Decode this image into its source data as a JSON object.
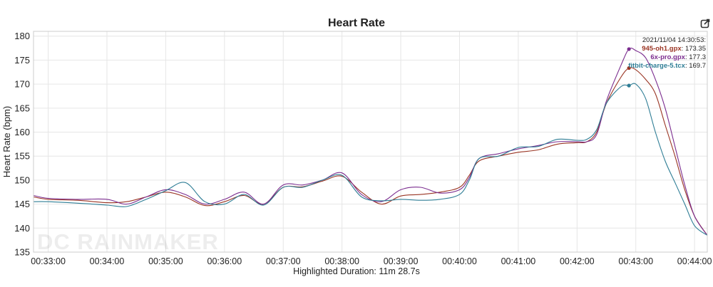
{
  "chart_data": {
    "type": "line",
    "title": "Heart Rate",
    "ylabel": "Heart Rate (bpm)",
    "xlabel": "",
    "ylim": [
      135,
      181
    ],
    "xlim": [
      "00:32:45",
      "00:44:13"
    ],
    "yticks": [
      135,
      140,
      145,
      150,
      155,
      160,
      165,
      170,
      175,
      180
    ],
    "xticks": [
      "00:33:00",
      "00:34:00",
      "00:35:00",
      "00:36:00",
      "00:37:00",
      "00:38:00",
      "00:39:00",
      "00:40:00",
      "00:41:00",
      "00:42:00",
      "00:43:00",
      "00:44:00"
    ],
    "grid": true,
    "series": [
      {
        "name": "945-oh1.gpx",
        "color": "#9a3524",
        "x": [
          "00:32:45",
          "00:33:00",
          "00:33:30",
          "00:34:00",
          "00:34:20",
          "00:34:40",
          "00:35:00",
          "00:35:20",
          "00:35:40",
          "00:36:00",
          "00:36:20",
          "00:36:40",
          "00:37:00",
          "00:37:20",
          "00:37:40",
          "00:38:00",
          "00:38:20",
          "00:38:40",
          "00:39:00",
          "00:39:20",
          "00:39:40",
          "00:40:00",
          "00:40:10",
          "00:40:20",
          "00:40:40",
          "00:41:00",
          "00:41:20",
          "00:41:40",
          "00:42:00",
          "00:42:10",
          "00:42:20",
          "00:42:30",
          "00:42:45",
          "00:42:53",
          "00:43:00",
          "00:43:10",
          "00:43:20",
          "00:43:30",
          "00:43:40",
          "00:43:50",
          "00:44:00",
          "00:44:13"
        ],
        "values": [
          146.5,
          146.0,
          145.8,
          145.3,
          145.5,
          146.5,
          147.5,
          146.5,
          144.7,
          145.5,
          146.8,
          145.0,
          148.5,
          148.6,
          149.8,
          150.8,
          147.5,
          145.0,
          146.7,
          147.0,
          147.5,
          148.5,
          151.0,
          154.0,
          155.0,
          155.8,
          156.3,
          157.5,
          157.8,
          158.0,
          160.0,
          166.0,
          171.5,
          173.35,
          173.0,
          171.0,
          168.0,
          161.5,
          155.0,
          148.0,
          142.5,
          138.5
        ]
      },
      {
        "name": "6x-pro.gpx",
        "color": "#7b2d8f",
        "x": [
          "00:32:45",
          "00:33:00",
          "00:33:30",
          "00:34:00",
          "00:34:20",
          "00:34:40",
          "00:35:00",
          "00:35:20",
          "00:35:40",
          "00:36:00",
          "00:36:20",
          "00:36:40",
          "00:37:00",
          "00:37:20",
          "00:37:40",
          "00:38:00",
          "00:38:20",
          "00:38:40",
          "00:39:00",
          "00:39:20",
          "00:39:40",
          "00:40:00",
          "00:40:10",
          "00:40:20",
          "00:40:40",
          "00:41:00",
          "00:41:20",
          "00:41:40",
          "00:42:00",
          "00:42:10",
          "00:42:20",
          "00:42:30",
          "00:42:45",
          "00:42:53",
          "00:43:00",
          "00:43:10",
          "00:43:20",
          "00:43:30",
          "00:43:40",
          "00:43:50",
          "00:44:00",
          "00:44:13"
        ],
        "values": [
          146.8,
          146.2,
          146.0,
          146.0,
          145.0,
          146.5,
          148.0,
          147.0,
          145.0,
          146.0,
          147.5,
          145.0,
          149.0,
          149.0,
          150.0,
          151.5,
          147.0,
          145.5,
          148.0,
          148.5,
          147.3,
          148.0,
          150.5,
          154.5,
          155.5,
          156.5,
          157.2,
          158.0,
          158.0,
          158.0,
          159.5,
          166.5,
          174.0,
          177.3,
          177.0,
          175.5,
          171.0,
          165.0,
          157.0,
          149.0,
          142.5,
          138.5
        ]
      },
      {
        "name": "fitbit-charge-5.tcx",
        "color": "#2e7d95",
        "x": [
          "00:32:45",
          "00:33:00",
          "00:33:30",
          "00:34:00",
          "00:34:20",
          "00:34:40",
          "00:35:00",
          "00:35:20",
          "00:35:40",
          "00:36:00",
          "00:36:20",
          "00:36:40",
          "00:37:00",
          "00:37:20",
          "00:37:40",
          "00:38:00",
          "00:38:20",
          "00:38:40",
          "00:39:00",
          "00:39:20",
          "00:39:40",
          "00:40:00",
          "00:40:10",
          "00:40:20",
          "00:40:40",
          "00:41:00",
          "00:41:20",
          "00:41:40",
          "00:42:00",
          "00:42:10",
          "00:42:20",
          "00:42:30",
          "00:42:45",
          "00:42:53",
          "00:43:00",
          "00:43:10",
          "00:43:20",
          "00:43:30",
          "00:43:40",
          "00:43:50",
          "00:44:00",
          "00:44:13"
        ],
        "values": [
          145.5,
          145.5,
          145.2,
          144.8,
          144.5,
          146.0,
          147.8,
          149.5,
          145.5,
          145.0,
          147.0,
          144.8,
          148.5,
          148.5,
          150.0,
          151.0,
          146.5,
          145.7,
          146.0,
          145.8,
          146.0,
          147.0,
          150.0,
          154.5,
          155.0,
          156.8,
          157.0,
          158.5,
          158.3,
          158.5,
          160.5,
          166.0,
          169.5,
          169.7,
          170.0,
          167.0,
          160.0,
          154.0,
          149.5,
          145.0,
          140.5,
          138.5
        ]
      }
    ]
  },
  "tooltip": {
    "timestamp": "2021/11/04 14:30:53:",
    "rows": [
      {
        "name": "945-oh1.gpx",
        "value": "173.35",
        "color": "#9a3524"
      },
      {
        "name": "6x-pro.gpx",
        "value": "177.3",
        "color": "#7b2d8f"
      },
      {
        "name": "fitbit-charge-5.tcx",
        "value": "169.7",
        "color": "#2e7d95"
      }
    ],
    "time": "00:42:53"
  },
  "footer": {
    "text": "Highlighted Duration: 11m 28.7s"
  },
  "watermark": "DC RAINMAKER",
  "icons": {
    "export": "export-icon"
  },
  "colors": {
    "grid": "#e6e6e6",
    "axis": "#cccccc",
    "text": "#222222"
  }
}
